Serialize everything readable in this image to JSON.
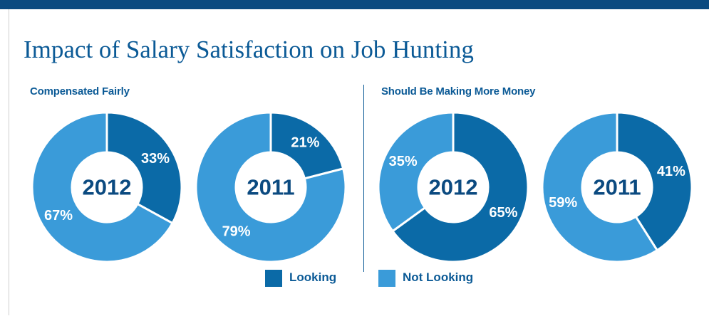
{
  "title": "Impact of Salary Satisfaction on Job Hunting",
  "colors": {
    "looking": "#0b6aa7",
    "not_looking": "#3a9bd9",
    "bar": "#0b4a80"
  },
  "legend": {
    "looking": "Looking",
    "not_looking": "Not Looking"
  },
  "groups": [
    {
      "title": "Compensated Fairly"
    },
    {
      "title": "Should Be Making More Money"
    }
  ],
  "chart_data": [
    {
      "type": "pie",
      "group": "Compensated Fairly",
      "center_label": "2012",
      "slices": [
        {
          "name": "Looking",
          "value": 33,
          "label": "33%"
        },
        {
          "name": "Not Looking",
          "value": 67,
          "label": "67%"
        }
      ]
    },
    {
      "type": "pie",
      "group": "Compensated Fairly",
      "center_label": "2011",
      "slices": [
        {
          "name": "Looking",
          "value": 21,
          "label": "21%"
        },
        {
          "name": "Not Looking",
          "value": 79,
          "label": "79%"
        }
      ]
    },
    {
      "type": "pie",
      "group": "Should Be Making More Money",
      "center_label": "2012",
      "slices": [
        {
          "name": "Looking",
          "value": 65,
          "label": "65%"
        },
        {
          "name": "Not Looking",
          "value": 35,
          "label": "35%"
        }
      ]
    },
    {
      "type": "pie",
      "group": "Should Be Making More Money",
      "center_label": "2011",
      "slices": [
        {
          "name": "Looking",
          "value": 41,
          "label": "41%"
        },
        {
          "name": "Not Looking",
          "value": 59,
          "label": "59%"
        }
      ]
    }
  ]
}
